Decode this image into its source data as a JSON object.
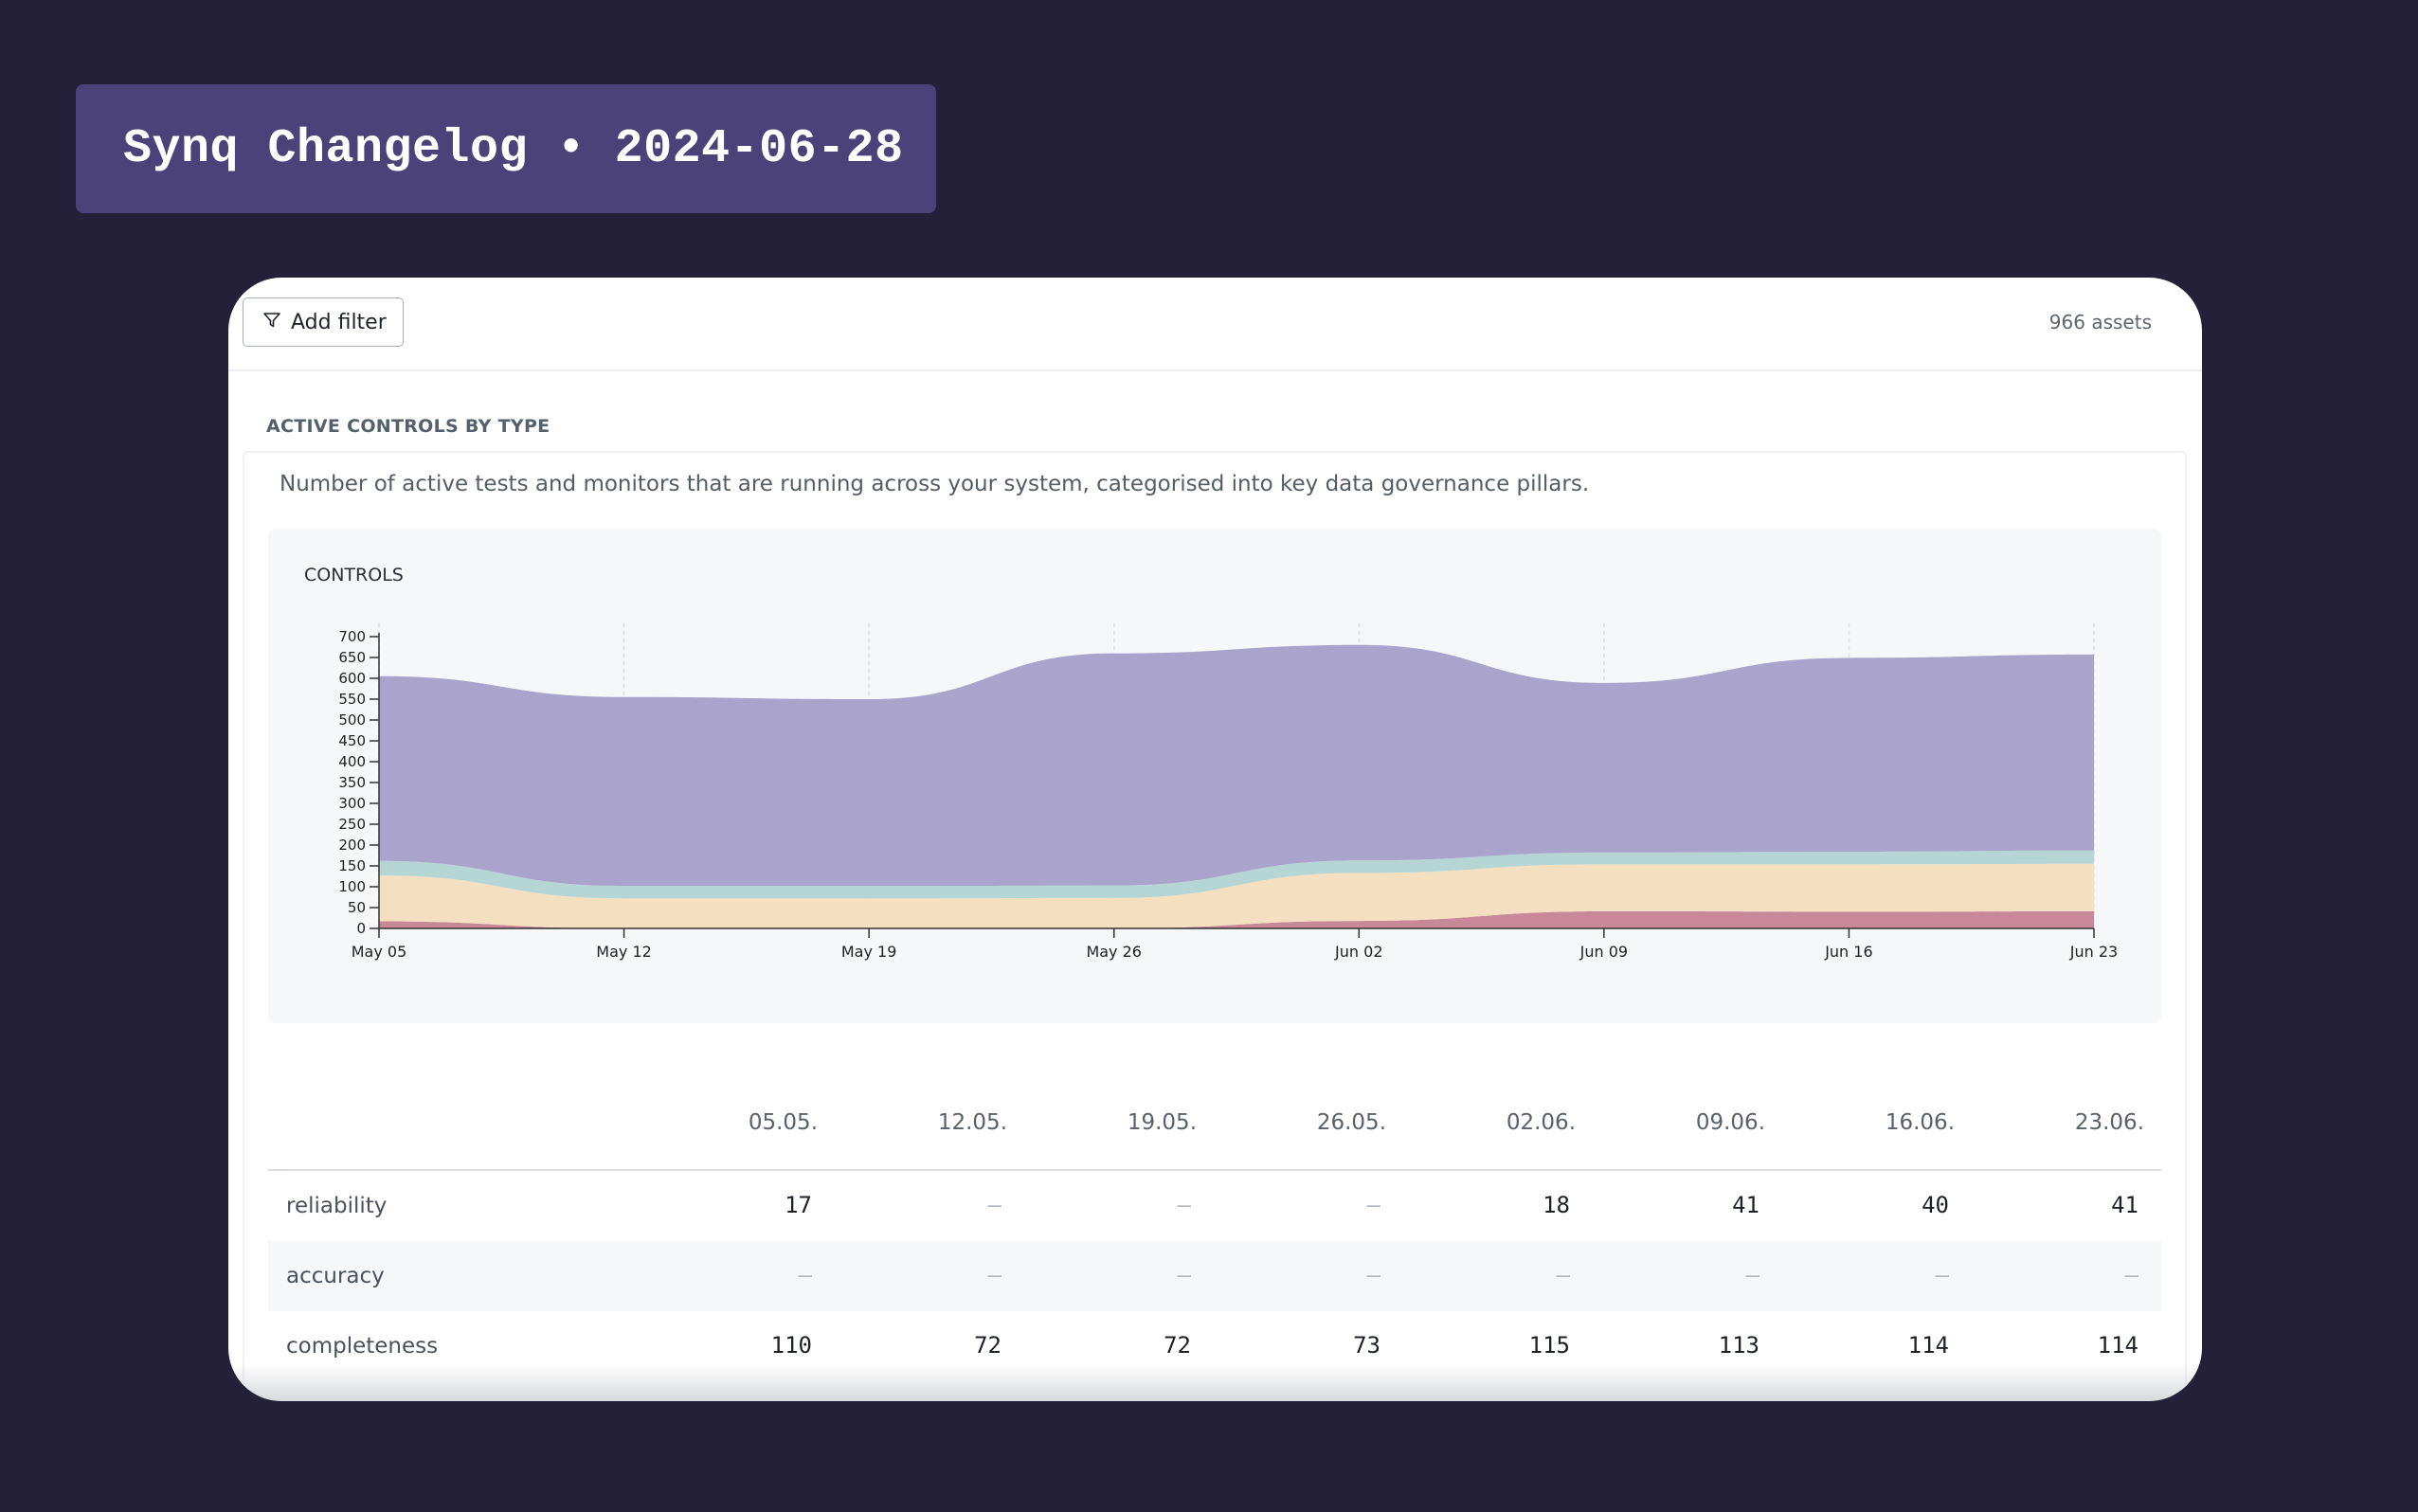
{
  "banner": {
    "title": "Synq Changelog • 2024-06-28"
  },
  "toolbar": {
    "add_filter_label": "Add filter",
    "assets_count": "966 assets"
  },
  "section": {
    "title": "ACTIVE CONTROLS BY TYPE",
    "description": "Number of active tests and monitors that are running across your system, categorised into key data governance pillars."
  },
  "chart_data": {
    "type": "area",
    "stacked": true,
    "title": "CONTROLS",
    "x": [
      "May 05",
      "May 12",
      "May 19",
      "May 26",
      "Jun 02",
      "Jun 09",
      "Jun 16",
      "Jun 23"
    ],
    "ylim": [
      0,
      700
    ],
    "yticks": [
      0,
      50,
      100,
      150,
      200,
      250,
      300,
      350,
      400,
      450,
      500,
      550,
      600,
      650,
      700
    ],
    "series": [
      {
        "color": "#c9879a",
        "values": [
          17,
          0,
          0,
          0,
          18,
          41,
          40,
          41
        ]
      },
      {
        "color": "#f4dfc0",
        "values": [
          110,
          72,
          72,
          73,
          115,
          113,
          114,
          114
        ]
      },
      {
        "color": "#b6d5d5",
        "values": [
          35,
          30,
          30,
          30,
          30,
          28,
          30,
          32
        ]
      },
      {
        "color": "#aaa4cc",
        "values": [
          443,
          453,
          448,
          557,
          517,
          407,
          465,
          470
        ]
      }
    ],
    "gridlines": "vertical-dashed",
    "legend": "none"
  },
  "table": {
    "columns": [
      "05.05.",
      "12.05.",
      "19.05.",
      "26.05.",
      "02.06.",
      "09.06.",
      "16.06.",
      "23.06."
    ],
    "rows": [
      {
        "label": "reliability",
        "values": [
          "17",
          "–",
          "–",
          "–",
          "18",
          "41",
          "40",
          "41"
        ]
      },
      {
        "label": "accuracy",
        "values": [
          "–",
          "–",
          "–",
          "–",
          "–",
          "–",
          "–",
          "–"
        ]
      },
      {
        "label": "completeness",
        "values": [
          "110",
          "72",
          "72",
          "73",
          "115",
          "113",
          "114",
          "114"
        ]
      }
    ]
  }
}
